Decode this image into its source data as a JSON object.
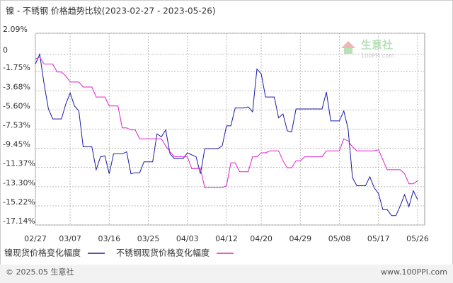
{
  "chart_data": {
    "type": "line",
    "title": "镍 - 不锈钢 价格趋势比较(2023-02-27 - 2023-05-26)",
    "watermark": {
      "logo": "生意社",
      "site": "100PPI.com"
    },
    "footer": {
      "left": "© 2025.05 生意社",
      "right": "www.100PPI.com"
    },
    "categories": [
      "02/27",
      null,
      null,
      null,
      null,
      null,
      null,
      null,
      "03/07",
      null,
      null,
      null,
      null,
      null,
      null,
      null,
      null,
      "03/16",
      null,
      null,
      null,
      null,
      null,
      null,
      null,
      null,
      "03/25",
      null,
      null,
      null,
      null,
      null,
      null,
      null,
      null,
      "04/03",
      null,
      null,
      null,
      null,
      null,
      null,
      null,
      null,
      "04/12",
      null,
      null,
      null,
      null,
      null,
      null,
      null,
      "04/20",
      null,
      null,
      null,
      null,
      null,
      null,
      null,
      null,
      "04/29",
      null,
      null,
      null,
      null,
      null,
      null,
      null,
      null,
      "05/08",
      null,
      null,
      null,
      null,
      null,
      null,
      null,
      null,
      "05/17",
      null,
      null,
      null,
      null,
      null,
      null,
      null,
      null,
      "05/26"
    ],
    "series": [
      {
        "name": "镍现货价格变化幅度",
        "color": "#1a1aa6",
        "values": [
          -1,
          0,
          -3,
          -5.5,
          -6.5,
          -6.5,
          -6.5,
          -5,
          -3.9,
          -5.2,
          -5.7,
          -9.3,
          -9.3,
          -9.3,
          -11.6,
          -10.3,
          -10.2,
          -12,
          -10,
          -10,
          -10,
          -9.8,
          -12,
          -11.9,
          -11.9,
          -10.8,
          -10.8,
          -10.8,
          -8,
          -8.3,
          -7.6,
          -10,
          -10.5,
          -10.5,
          -10.5,
          -9.9,
          -10.1,
          -10.3,
          -12,
          -9.5,
          -9.5,
          -9.5,
          -9.5,
          -9.2,
          -7.2,
          -7.2,
          -5.4,
          -5.4,
          -5.4,
          -5.3,
          -5.8,
          -1.5,
          -2,
          -4.3,
          -4.3,
          -4.3,
          -6.4,
          -6,
          -7.7,
          -7.8,
          -5.5,
          -5.5,
          -5.5,
          -5.5,
          -5.5,
          -5.5,
          -5.5,
          -3.8,
          -6.7,
          -6.7,
          -6.7,
          -5.7,
          -7.5,
          -12.4,
          -13.2,
          -13.2,
          -13.2,
          -12.3,
          -13.4,
          -14,
          -15.6,
          -15.6,
          -16.2,
          -16.2,
          -15.2,
          -14.1,
          -15.3,
          -13.7,
          -14.6
        ]
      },
      {
        "name": "不锈钢现货价格变化幅度",
        "color": "#e020d0",
        "values": [
          -0.5,
          -0.3,
          -1,
          -1,
          -1,
          -1.8,
          -1.8,
          -2.2,
          -2.8,
          -2.8,
          -2.8,
          -3.3,
          -3.3,
          -3.3,
          -4.3,
          -4.3,
          -4.3,
          -5.2,
          -5.2,
          -5.2,
          -7.4,
          -7.4,
          -7.6,
          -7.6,
          -8.5,
          -8.5,
          -8.5,
          -8.5,
          -8.5,
          -8.5,
          -9.2,
          -9.8,
          -10.3,
          -10.3,
          -10.3,
          -10.3,
          -11.5,
          -11.5,
          -11.5,
          -13.4,
          -13.4,
          -13.4,
          -13.4,
          -13.4,
          -13.2,
          -10.9,
          -10.9,
          -11.8,
          -11.8,
          -11.8,
          -10.3,
          -10.3,
          -9.9,
          -9.9,
          -9.7,
          -9.7,
          -9.7,
          -10.7,
          -11.4,
          -11.4,
          -10.7,
          -10.7,
          -10.3,
          -10.3,
          -10.3,
          -10.3,
          -10.3,
          -9.7,
          -9.7,
          -9.7,
          -9.7,
          -8.5,
          -8.7,
          -9.3,
          -9.7,
          -9.7,
          -9.7,
          -9.7,
          -9.7,
          -9.6,
          -10.6,
          -11.6,
          -11.6,
          -11.6,
          -11.6,
          -12,
          -13,
          -13,
          -12.7
        ]
      }
    ],
    "ylim": [
      -17.14,
      2.09
    ],
    "yticks": [
      {
        "value": 2.09,
        "label": "2.09%"
      },
      0,
      {
        "value": -1.75,
        "label": "-1.75%"
      },
      {
        "value": -3.68,
        "label": "-3.68%"
      },
      {
        "value": -5.6,
        "label": "-5.60%"
      },
      {
        "value": -7.53,
        "label": "-7.53%"
      },
      {
        "value": -9.45,
        "label": "-9.45%"
      },
      {
        "value": -11.37,
        "label": "-11.37%"
      },
      {
        "value": -13.3,
        "label": "-13.30%"
      },
      {
        "value": -15.22,
        "label": "-15.22%"
      },
      {
        "value": -17.14,
        "label": "-17.14%"
      }
    ],
    "grid": true
  }
}
